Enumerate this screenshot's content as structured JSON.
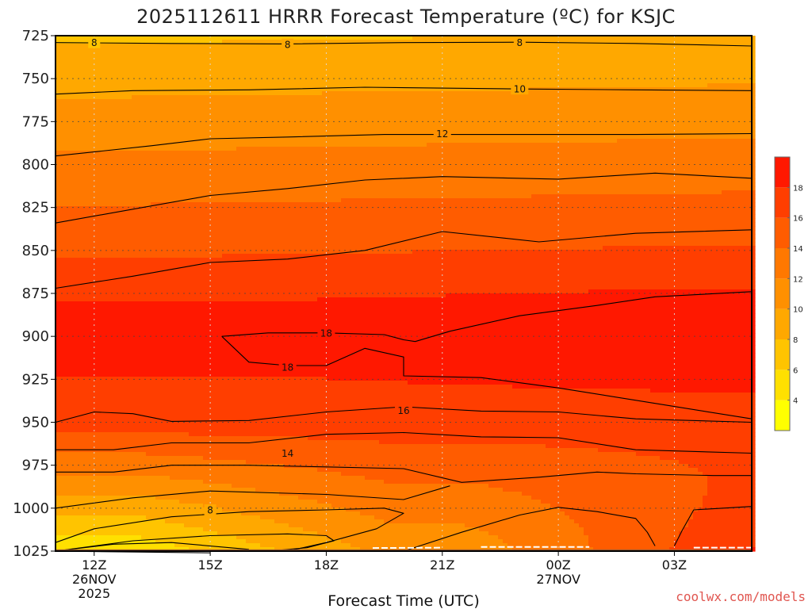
{
  "title": "2025112611 HRRR Forecast Temperature (ºC) for KSJC",
  "credit": "coolwx.com/models",
  "chart_data": {
    "type": "heatmap",
    "title": "2025112611 HRRR Forecast Temperature (ºC) for KSJC",
    "xlabel": "Forecast Time (UTC)",
    "ylabel": "",
    "y_ticks": [
      725,
      750,
      775,
      800,
      825,
      850,
      875,
      900,
      925,
      950,
      975,
      1000,
      1025
    ],
    "ylim": [
      1025,
      725
    ],
    "x_ticks": [
      {
        "label": "12Z",
        "sub1": "26NOV",
        "sub2": "2025",
        "hour": 12
      },
      {
        "label": "15Z",
        "sub1": "",
        "sub2": "",
        "hour": 15
      },
      {
        "label": "18Z",
        "sub1": "",
        "sub2": "",
        "hour": 18
      },
      {
        "label": "21Z",
        "sub1": "",
        "sub2": "",
        "hour": 21
      },
      {
        "label": "00Z",
        "sub1": "27NOV",
        "sub2": "",
        "hour": 24
      },
      {
        "label": "03Z",
        "sub1": "",
        "sub2": "",
        "hour": 27
      }
    ],
    "xlim": [
      11,
      29
    ],
    "grid": true,
    "colorbar": {
      "levels": [
        2,
        4,
        6,
        8,
        10,
        12,
        14,
        16,
        18,
        20
      ],
      "colors": [
        "#ffff00",
        "#ffe000",
        "#ffc400",
        "#ffa800",
        "#ff9000",
        "#ff7800",
        "#ff5c00",
        "#ff3e00",
        "#ff1800"
      ],
      "tick_labels": [
        "4",
        "6",
        "8",
        "10",
        "12",
        "14",
        "16",
        "18"
      ]
    },
    "contour_labels": [
      {
        "text": "8",
        "hour": 12.0,
        "pressure": 729
      },
      {
        "text": "8",
        "hour": 17.0,
        "pressure": 730
      },
      {
        "text": "8",
        "hour": 23.0,
        "pressure": 729
      },
      {
        "text": "10",
        "hour": 23.0,
        "pressure": 756
      },
      {
        "text": "12",
        "hour": 21.0,
        "pressure": 782
      },
      {
        "text": "18",
        "hour": 18.0,
        "pressure": 898
      },
      {
        "text": "18",
        "hour": 17.0,
        "pressure": 918
      },
      {
        "text": "16",
        "hour": 20.0,
        "pressure": 943
      },
      {
        "text": "14",
        "hour": 17.0,
        "pressure": 968
      },
      {
        "text": "8",
        "hour": 15.0,
        "pressure": 1001
      }
    ]
  }
}
